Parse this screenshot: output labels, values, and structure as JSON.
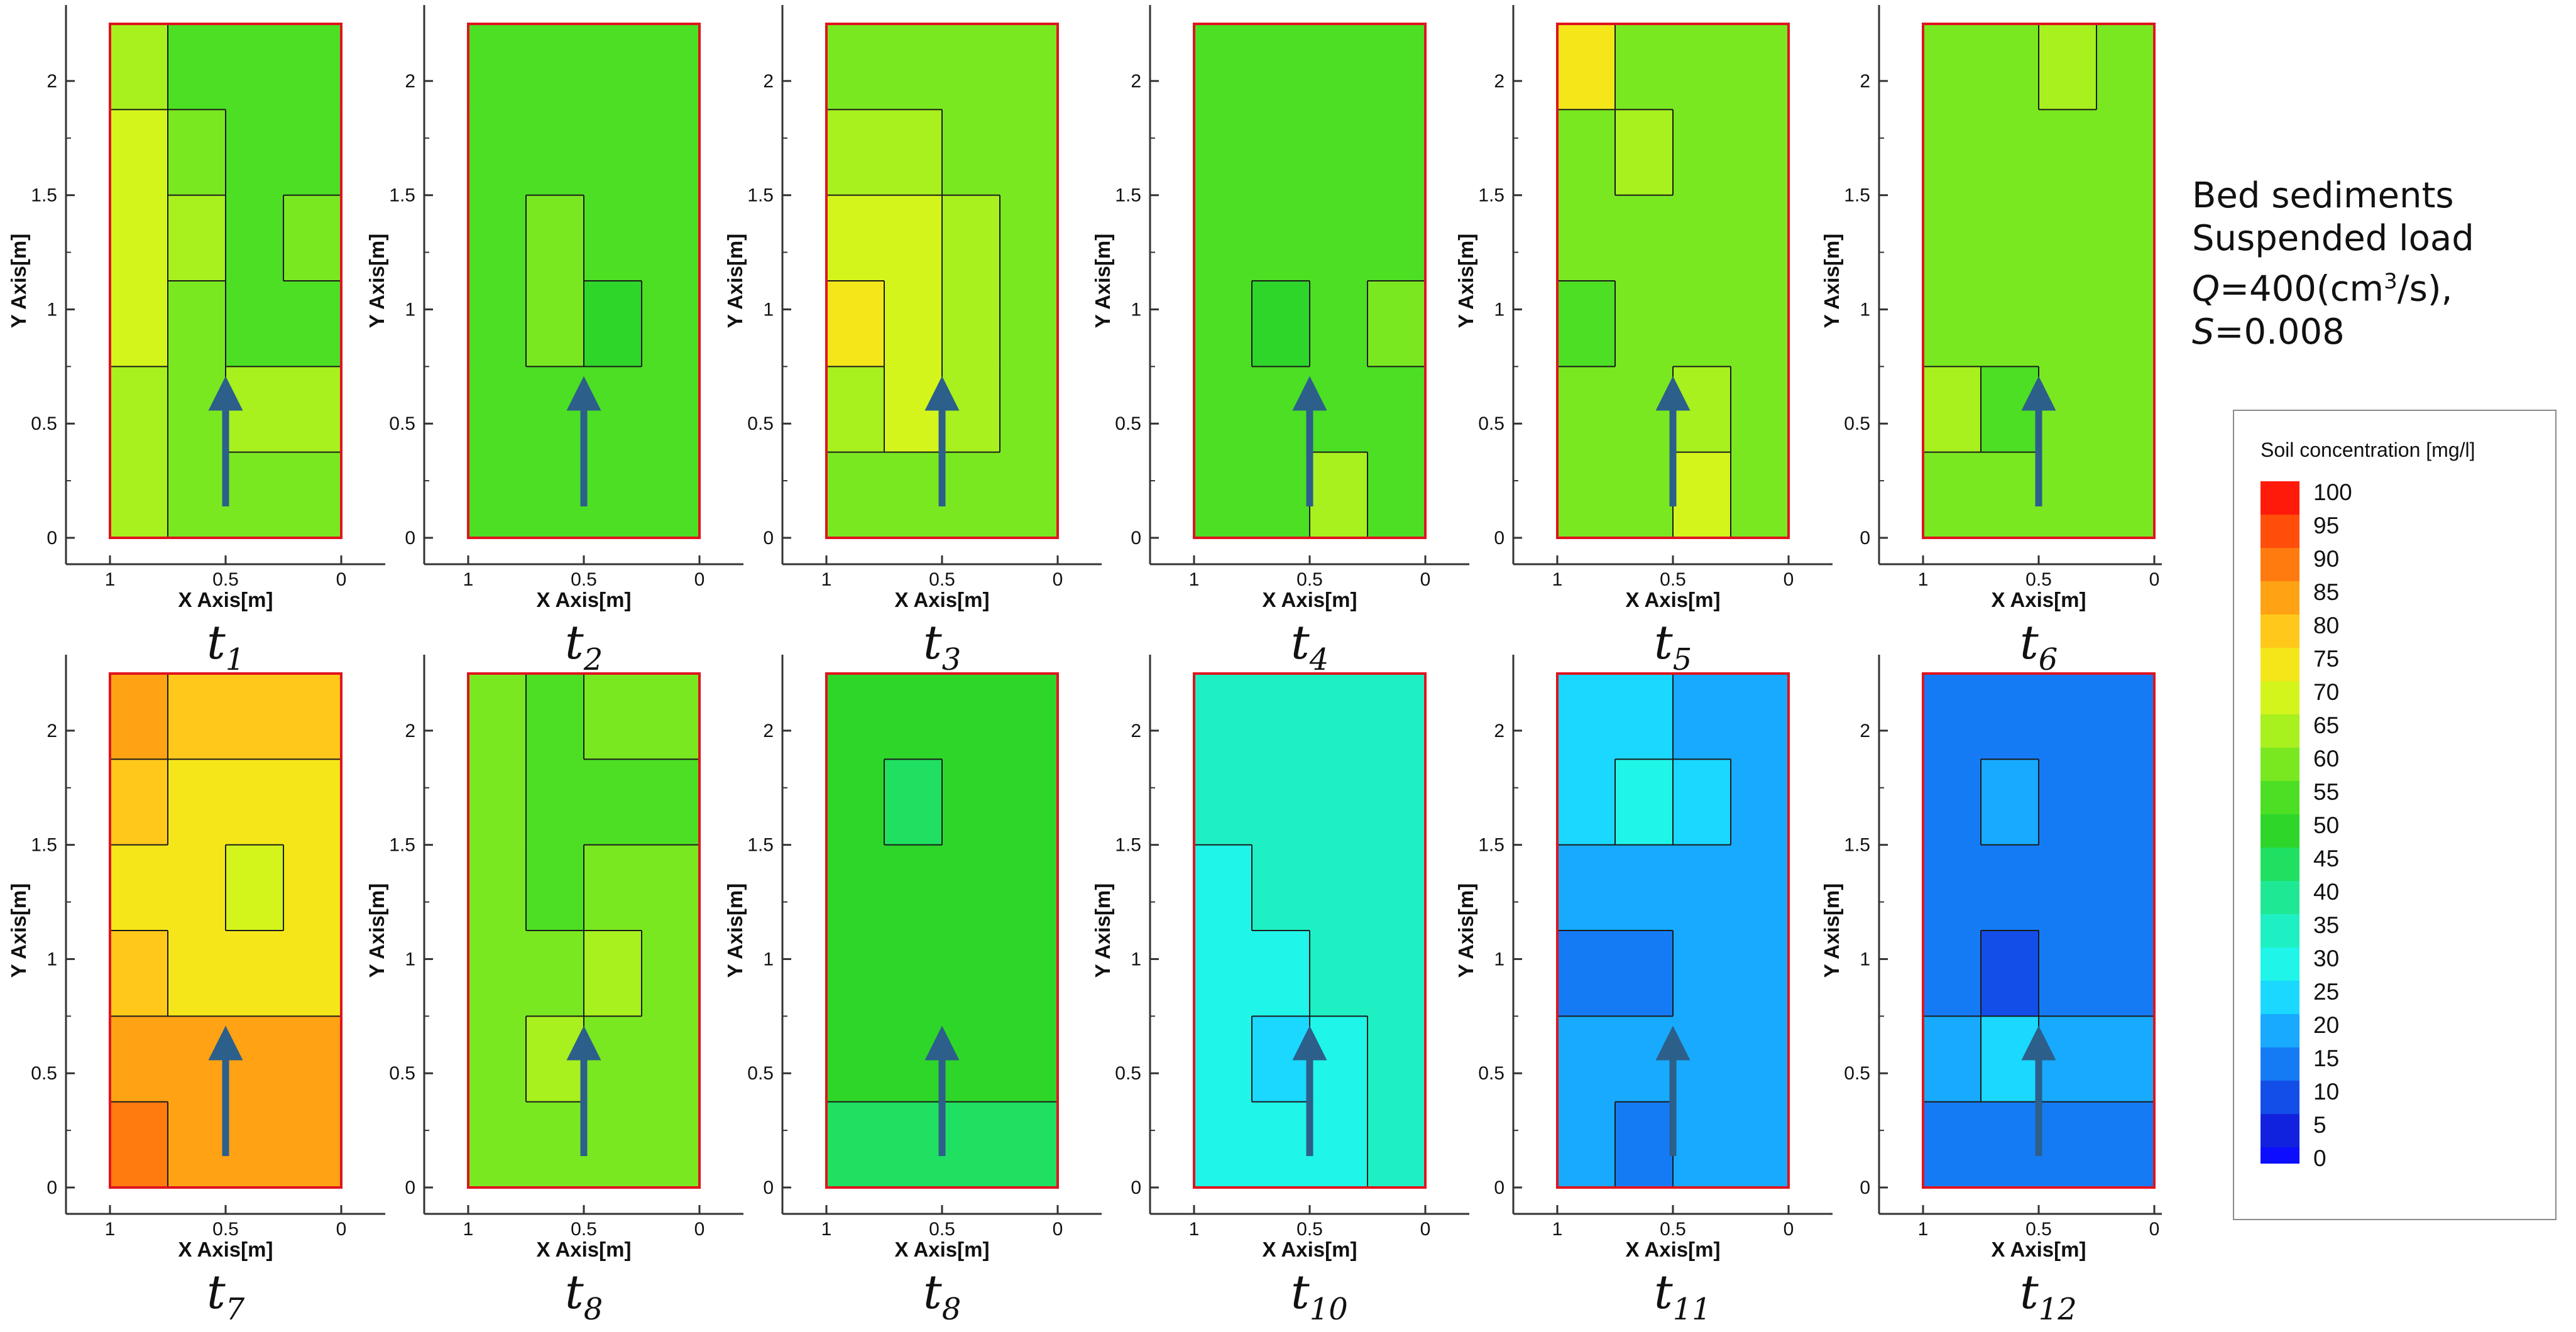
{
  "note": {
    "line1": "Bed sediments",
    "line2": "Suspended load",
    "q_symbol": "Q",
    "q_value": "=400(cm",
    "q_sup": "3",
    "q_unit": "/s),",
    "s_symbol": "S",
    "s_value": "=0.008"
  },
  "legend": {
    "title": "Soil concentration [mg/l]",
    "levels": [
      100,
      95,
      90,
      85,
      80,
      75,
      70,
      65,
      60,
      55,
      50,
      45,
      40,
      35,
      30,
      25,
      20,
      15,
      10,
      5,
      0
    ],
    "colors": {
      "100": "#ff1a0a",
      "95": "#ff4d0a",
      "90": "#ff7a0f",
      "85": "#ffa214",
      "80": "#ffc81a",
      "75": "#f5e61a",
      "70": "#d4f51c",
      "65": "#a8f01e",
      "60": "#7ae821",
      "55": "#4cdf24",
      "50": "#2ed62a",
      "45": "#1fe061",
      "40": "#1fe895",
      "35": "#1ff0c4",
      "30": "#1ff5e8",
      "25": "#1ad8ff",
      "20": "#17aaff",
      "15": "#157bf5",
      "10": "#134ee8",
      "5": "#1122de",
      "0": "#0d0dff"
    }
  },
  "chart_data": {
    "type": "heatmap",
    "x_axis": {
      "label": "X Axis[m]",
      "ticks": [
        "1",
        "0.5",
        "0"
      ],
      "range": [
        1,
        0
      ]
    },
    "y_axis": {
      "label": "Y Axis[m]",
      "ticks": [
        "0",
        "0.5",
        "1",
        "1.5",
        "2"
      ],
      "range": [
        0,
        2.25
      ]
    },
    "colorbar": {
      "label": "Soil concentration [mg/l]",
      "min": 0,
      "max": 100,
      "step": 5
    },
    "panels": [
      {
        "label": "t",
        "sub": "1",
        "mean_level": 60,
        "field": [
          [
            65,
            55,
            55,
            55
          ],
          [
            70,
            60,
            55,
            55
          ],
          [
            70,
            65,
            55,
            60
          ],
          [
            70,
            60,
            55,
            55
          ],
          [
            65,
            60,
            65,
            65
          ],
          [
            65,
            60,
            60,
            60
          ]
        ]
      },
      {
        "label": "t",
        "sub": "2",
        "mean_level": 55,
        "field": [
          [
            55,
            55,
            55,
            55
          ],
          [
            55,
            55,
            55,
            55
          ],
          [
            55,
            60,
            55,
            55
          ],
          [
            55,
            60,
            50,
            55
          ],
          [
            55,
            55,
            55,
            55
          ],
          [
            55,
            55,
            55,
            55
          ]
        ]
      },
      {
        "label": "t",
        "sub": "3",
        "mean_level": 65,
        "field": [
          [
            60,
            60,
            60,
            60
          ],
          [
            65,
            65,
            60,
            60
          ],
          [
            70,
            70,
            65,
            60
          ],
          [
            75,
            70,
            65,
            60
          ],
          [
            65,
            70,
            65,
            60
          ],
          [
            60,
            60,
            60,
            60
          ]
        ]
      },
      {
        "label": "t",
        "sub": "4",
        "mean_level": 55,
        "field": [
          [
            55,
            55,
            55,
            55
          ],
          [
            55,
            55,
            55,
            55
          ],
          [
            55,
            55,
            55,
            55
          ],
          [
            55,
            50,
            55,
            60
          ],
          [
            55,
            55,
            55,
            55
          ],
          [
            55,
            55,
            65,
            55
          ]
        ]
      },
      {
        "label": "t",
        "sub": "5",
        "mean_level": 60,
        "field": [
          [
            75,
            60,
            60,
            60
          ],
          [
            60,
            65,
            60,
            60
          ],
          [
            60,
            60,
            60,
            60
          ],
          [
            55,
            60,
            60,
            60
          ],
          [
            60,
            60,
            65,
            60
          ],
          [
            60,
            60,
            70,
            60
          ]
        ]
      },
      {
        "label": "t",
        "sub": "6",
        "mean_level": 60,
        "field": [
          [
            60,
            60,
            65,
            60
          ],
          [
            60,
            60,
            60,
            60
          ],
          [
            60,
            60,
            60,
            60
          ],
          [
            60,
            60,
            60,
            60
          ],
          [
            65,
            55,
            60,
            60
          ],
          [
            60,
            60,
            60,
            60
          ]
        ]
      },
      {
        "label": "t",
        "sub": "7",
        "mean_level": 80,
        "field": [
          [
            85,
            80,
            80,
            80
          ],
          [
            80,
            75,
            75,
            75
          ],
          [
            75,
            75,
            70,
            75
          ],
          [
            80,
            75,
            75,
            75
          ],
          [
            85,
            85,
            85,
            85
          ],
          [
            90,
            85,
            85,
            85
          ]
        ]
      },
      {
        "label": "t",
        "sub": "8",
        "mean_level": 60,
        "field": [
          [
            60,
            55,
            60,
            60
          ],
          [
            60,
            55,
            55,
            55
          ],
          [
            60,
            55,
            60,
            60
          ],
          [
            60,
            60,
            65,
            60
          ],
          [
            60,
            65,
            60,
            60
          ],
          [
            60,
            60,
            60,
            60
          ]
        ]
      },
      {
        "label": "t",
        "sub": "8",
        "mean_level": 50,
        "field": [
          [
            50,
            50,
            50,
            50
          ],
          [
            50,
            45,
            50,
            50
          ],
          [
            50,
            50,
            50,
            50
          ],
          [
            50,
            50,
            50,
            50
          ],
          [
            50,
            50,
            50,
            50
          ],
          [
            45,
            45,
            45,
            45
          ]
        ]
      },
      {
        "label": "t",
        "sub": "10",
        "mean_level": 35,
        "field": [
          [
            35,
            35,
            35,
            35
          ],
          [
            35,
            35,
            35,
            35
          ],
          [
            30,
            35,
            35,
            35
          ],
          [
            30,
            30,
            35,
            35
          ],
          [
            30,
            25,
            30,
            35
          ],
          [
            30,
            30,
            30,
            35
          ]
        ]
      },
      {
        "label": "t",
        "sub": "11",
        "mean_level": 20,
        "field": [
          [
            25,
            25,
            20,
            20
          ],
          [
            25,
            30,
            25,
            20
          ],
          [
            20,
            20,
            20,
            20
          ],
          [
            15,
            15,
            20,
            20
          ],
          [
            20,
            20,
            20,
            20
          ],
          [
            20,
            15,
            20,
            20
          ]
        ]
      },
      {
        "label": "t",
        "sub": "12",
        "mean_level": 15,
        "field": [
          [
            15,
            15,
            15,
            15
          ],
          [
            15,
            20,
            15,
            15
          ],
          [
            15,
            15,
            15,
            15
          ],
          [
            15,
            10,
            15,
            15
          ],
          [
            20,
            25,
            20,
            20
          ],
          [
            15,
            15,
            15,
            15
          ]
        ]
      }
    ],
    "annotations": [
      "flow direction arrow at x=0.5 m pointing upward"
    ]
  }
}
